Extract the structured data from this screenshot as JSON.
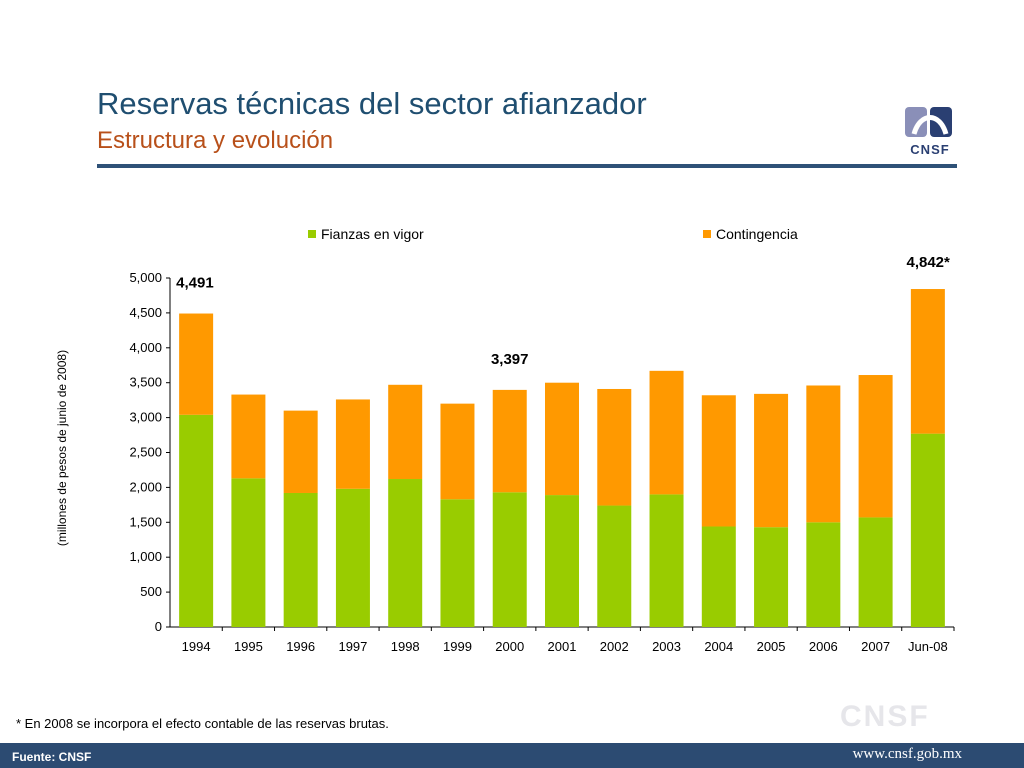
{
  "header": {
    "title": "Reservas técnicas del sector afianzador",
    "subtitle": "Estructura y evolución",
    "logo_text": "CNSF"
  },
  "chart_data": {
    "type": "bar",
    "stacked": true,
    "categories": [
      "1994",
      "1995",
      "1996",
      "1997",
      "1998",
      "1999",
      "2000",
      "2001",
      "2002",
      "2003",
      "2004",
      "2005",
      "2006",
      "2007",
      "Jun-08"
    ],
    "series": [
      {
        "name": "Fianzas en vigor",
        "color": "#99cc00",
        "values": [
          3040,
          2130,
          1920,
          1980,
          2120,
          1830,
          1930,
          1890,
          1740,
          1900,
          1440,
          1430,
          1500,
          1570,
          2770
        ]
      },
      {
        "name": "Contingencia",
        "color": "#ff9900",
        "values": [
          1451,
          1200,
          1180,
          1280,
          1350,
          1370,
          1467,
          1610,
          1670,
          1770,
          1880,
          1910,
          1960,
          2040,
          2072
        ]
      }
    ],
    "ylabel": "(millones de pesos de junio de 2008)",
    "ylim": [
      0,
      5000
    ],
    "yticks": [
      "0",
      "500",
      "1,000",
      "1,500",
      "2,000",
      "2,500",
      "3,000",
      "3,500",
      "4,000",
      "4,500",
      "5,000"
    ],
    "annotations": [
      {
        "category": "1994",
        "text": "4,491"
      },
      {
        "category": "2000",
        "text": "3,397"
      },
      {
        "category": "Jun-08",
        "text": "4,842*"
      }
    ],
    "legend_position": "top"
  },
  "footnote": "* En 2008 se incorpora el efecto contable de las reservas brutas.",
  "watermark": "CNSF",
  "footer": {
    "source": "Fuente: CNSF",
    "url": "www.cnsf.gob.mx"
  }
}
